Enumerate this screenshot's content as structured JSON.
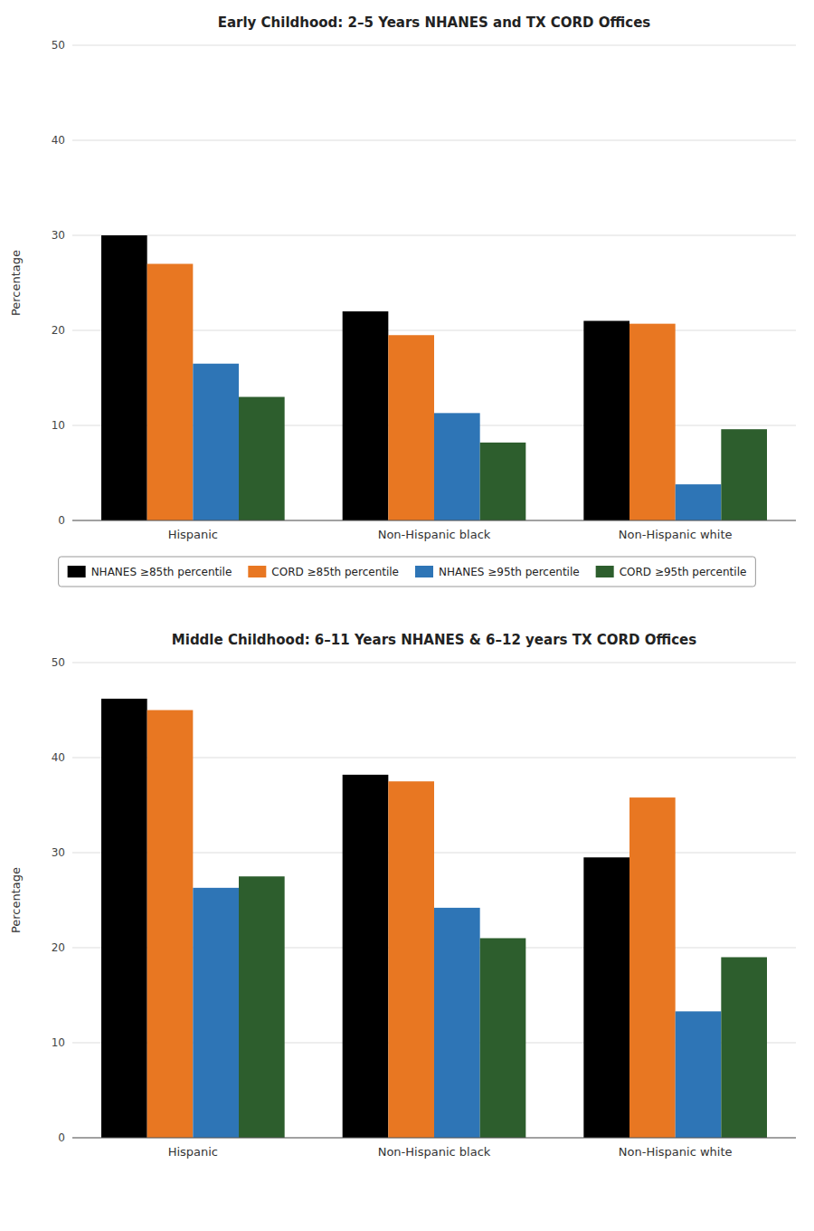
{
  "chart_data": [
    {
      "type": "bar",
      "title": "Early Childhood: 2–5 Years NHANES and TX CORD Offices",
      "categories": [
        "Hispanic",
        "Non-Hispanic black",
        "Non-Hispanic white"
      ],
      "series": [
        {
          "name": "NHANES ≥85th percentile",
          "color": "#000000",
          "values": [
            30.0,
            22.0,
            21.0
          ]
        },
        {
          "name": "CORD ≥85th percentile",
          "color": "#e87722",
          "values": [
            27.0,
            19.5,
            20.7
          ]
        },
        {
          "name": "NHANES ≥95th percentile",
          "color": "#2e75b6",
          "values": [
            16.5,
            11.3,
            3.8
          ]
        },
        {
          "name": "CORD ≥95th percentile",
          "color": "#2d5e2d",
          "values": [
            13.0,
            8.2,
            9.6
          ]
        }
      ],
      "ylabel": "Percentage",
      "ylim": [
        0,
        50
      ],
      "yticks": [
        0,
        10,
        20,
        30,
        40,
        50
      ],
      "grid": true,
      "legend": "bottom"
    },
    {
      "type": "bar",
      "title": "Middle Childhood: 6–11 Years NHANES & 6–12 years TX CORD Offices",
      "categories": [
        "Hispanic",
        "Non-Hispanic black",
        "Non-Hispanic white"
      ],
      "series": [
        {
          "name": "NHANES ≥85th percentile",
          "color": "#000000",
          "values": [
            46.2,
            38.2,
            29.5
          ]
        },
        {
          "name": "CORD ≥85th percentile",
          "color": "#e87722",
          "values": [
            45.0,
            37.5,
            35.8
          ]
        },
        {
          "name": "NHANES ≥95th percentile",
          "color": "#2e75b6",
          "values": [
            26.3,
            24.2,
            13.3
          ]
        },
        {
          "name": "CORD ≥95th percentile",
          "color": "#2d5e2d",
          "values": [
            27.5,
            21.0,
            19.0
          ]
        }
      ],
      "ylabel": "Percentage",
      "ylim": [
        0,
        50
      ],
      "yticks": [
        0,
        10,
        20,
        30,
        40,
        50
      ],
      "grid": true
    }
  ]
}
